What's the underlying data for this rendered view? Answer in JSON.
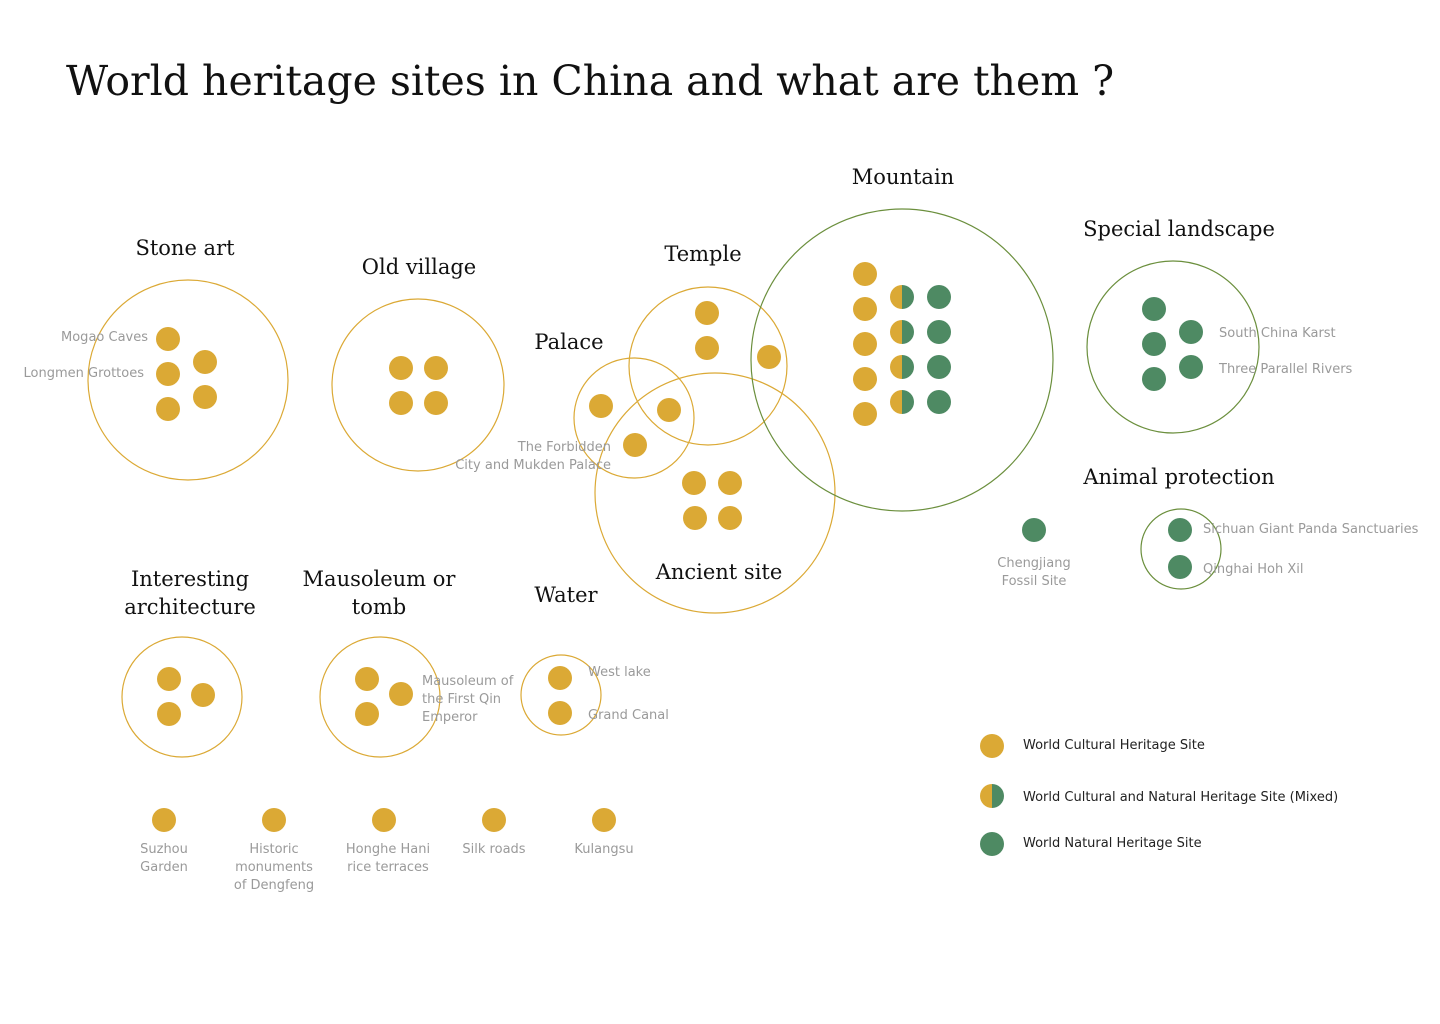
{
  "title": "World heritage sites in China and what are them ?",
  "colors": {
    "cultural": "#dba935",
    "natural": "#4e8a63",
    "cultural_ring": "#dba935",
    "natural_ring": "#4e8a63"
  },
  "groups": {
    "stone_art": "Stone art",
    "old_village": "Old village",
    "temple": "Temple",
    "palace": "Palace",
    "mountain": "Mountain",
    "special_landscape": "Special landscape",
    "ancient_site": "Ancient site",
    "animal_protection": "Animal protection",
    "interesting_architecture_1": "Interesting",
    "interesting_architecture_2": "architecture",
    "mausoleum_1": "Mausoleum or",
    "mausoleum_2": "tomb",
    "water": "Water"
  },
  "sites": {
    "mogao": "Mogao Caves",
    "longmen": "Longmen Grottoes",
    "forbidden_1": "The Forbidden",
    "forbidden_2": "City and Mukden Palace",
    "south_china_karst": "South China Karst",
    "three_parallel": "Three Parallel Rivers",
    "chengjiang_1": "Chengjiang",
    "chengjiang_2": "Fossil Site",
    "sichuan_panda": "Sichuan Giant Panda Sanctuaries",
    "qinghai": "Qinghai Hoh Xil",
    "qin_1": "Mausoleum of",
    "qin_2": "the First Qin",
    "qin_3": "Emperor",
    "west_lake": "West lake",
    "grand_canal": "Grand Canal",
    "suzhou_1": "Suzhou",
    "suzhou_2": "Garden",
    "dengfeng_1": "Historic",
    "dengfeng_2": "monuments",
    "dengfeng_3": "of Dengfeng",
    "honghe_1": "Honghe Hani",
    "honghe_2": "rice terraces",
    "silk": "Silk roads",
    "kulangsu": "Kulangsu"
  },
  "legend": {
    "cultural": "World Cultural Heritage Site",
    "mixed": "World Cultural and Natural Heritage Site (Mixed)",
    "natural": "World Natural Heritage Site"
  }
}
